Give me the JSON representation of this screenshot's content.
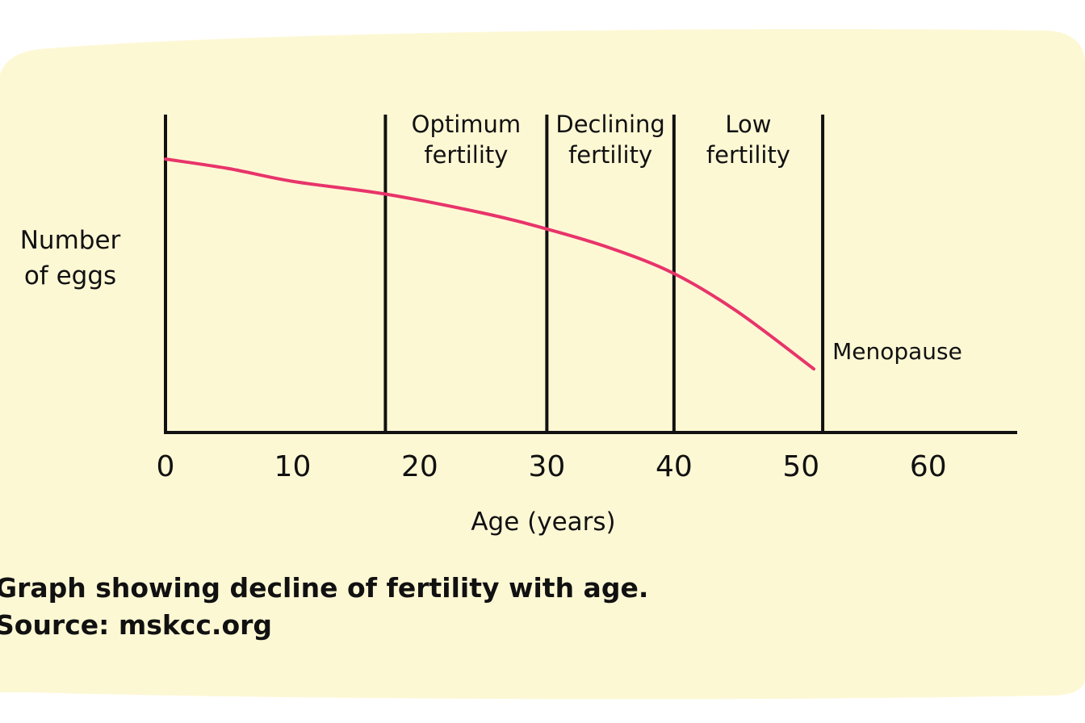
{
  "colors": {
    "background": "#fdf8d4",
    "curve": "#e8346a",
    "axis": "#111111"
  },
  "caption": {
    "line1": "Graph showing decline of fertility with age.",
    "line2": "Source: mskcc.org"
  },
  "chart_data": {
    "type": "line",
    "title": "",
    "xlabel": "Age (years)",
    "ylabel_lines": [
      "Number",
      "of eggs"
    ],
    "xlim": [
      0,
      67
    ],
    "ylim": [
      0,
      100
    ],
    "xticks": [
      0,
      10,
      20,
      30,
      40,
      50,
      60
    ],
    "x": [
      0,
      5,
      10,
      17.3,
      25,
      30,
      35,
      40,
      45,
      51
    ],
    "y": [
      86,
      83,
      79,
      75,
      69,
      64,
      58,
      50,
      38,
      20
    ],
    "vlines": [
      {
        "x": 0,
        "label": ""
      },
      {
        "x": 17.3,
        "label": ""
      },
      {
        "x": 30,
        "label": ""
      },
      {
        "x": 40,
        "label": ""
      },
      {
        "x": 51.7,
        "label": "Menopause"
      }
    ],
    "zones": [
      {
        "from": 17.3,
        "to": 30,
        "label_lines": [
          "Optimum",
          "fertility"
        ]
      },
      {
        "from": 30,
        "to": 40,
        "label_lines": [
          "Declining",
          "fertility"
        ]
      },
      {
        "from": 40,
        "to": 51.7,
        "label_lines": [
          "Low",
          "fertility"
        ]
      }
    ],
    "grid": false
  }
}
